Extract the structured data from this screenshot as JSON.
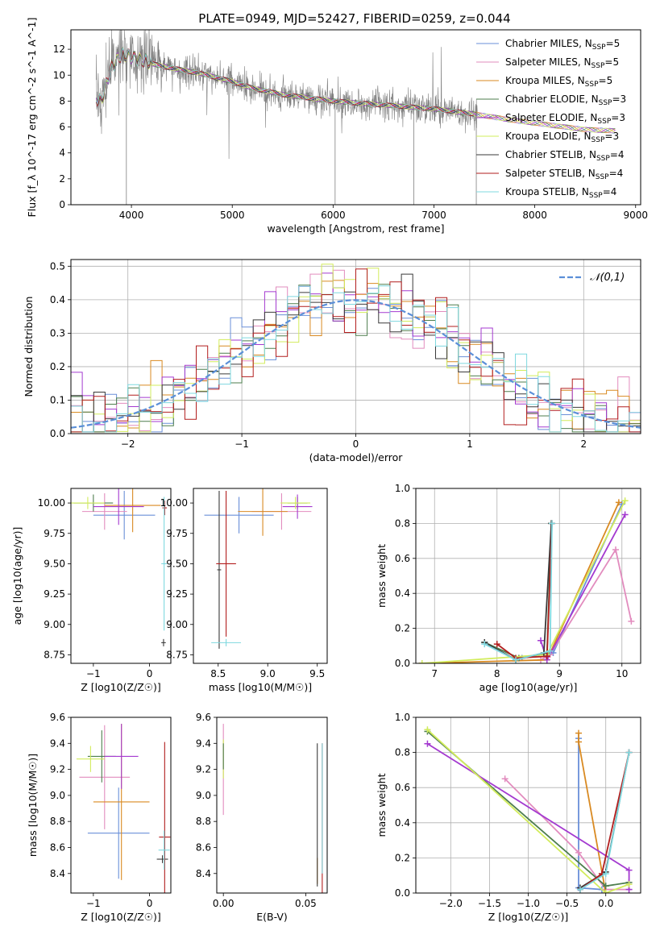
{
  "figure_title": "PLATE=0949, MJD=52427, FIBERID=0259, z=0.044",
  "colors": {
    "Chabrier MILES": "#6a8fd8",
    "Salpeter MILES": "#e28cbe",
    "Kroupa MILES": "#d98a22",
    "Chabrier ELODIE": "#4e7e4e",
    "Salpeter ELODIE": "#a43ad0",
    "Kroupa ELODIE": "#d2ec5c",
    "Chabrier STELIB": "#3a3a3a",
    "Salpeter STELIB": "#b21e1e",
    "Kroupa STELIB": "#7fd8df",
    "data": "#808080",
    "normal_curve": "#5b8fd8",
    "grid": "#b0b0b0"
  },
  "chart_data": [
    {
      "id": "spectrum",
      "type": "line",
      "title": "PLATE=0949, MJD=52427, FIBERID=0259, z=0.044",
      "xlabel": "wavelength [Angstrom, rest frame]",
      "ylabel": "Flux [f_λ 10^-17 erg cm^-2 s^-1 A^-1]",
      "xlim": [
        3400,
        9050
      ],
      "ylim": [
        0,
        13.5
      ],
      "xticks": [
        4000,
        5000,
        6000,
        7000,
        8000,
        9000
      ],
      "yticks": [
        0,
        2,
        4,
        6,
        8,
        10,
        12
      ],
      "grid": false,
      "legend_position": "top-right",
      "legend": [
        {
          "name": "Chabrier MILES",
          "ssp": "5"
        },
        {
          "name": "Salpeter MILES",
          "ssp": "5"
        },
        {
          "name": "Kroupa MILES",
          "ssp": "5"
        },
        {
          "name": "Chabrier ELODIE",
          "ssp": "3"
        },
        {
          "name": "Salpeter ELODIE",
          "ssp": "3"
        },
        {
          "name": "Kroupa ELODIE",
          "ssp": "3"
        },
        {
          "name": "Chabrier STELIB",
          "ssp": "4"
        },
        {
          "name": "Salpeter STELIB",
          "ssp": "4"
        },
        {
          "name": "Kroupa STELIB",
          "ssp": "4"
        }
      ],
      "continuum": {
        "x": [
          3650,
          3700,
          3750,
          3800,
          3900,
          4000,
          4100,
          4200,
          4300,
          4500,
          4700,
          5000,
          5200,
          5500,
          6000,
          6500,
          7000,
          7400,
          7800,
          8200,
          8500,
          8800
        ],
        "y": [
          8.2,
          8.0,
          9.3,
          10.6,
          11.6,
          11.4,
          11.2,
          10.9,
          10.7,
          10.4,
          10.1,
          9.5,
          9.0,
          8.5,
          8.0,
          7.7,
          7.4,
          7.0,
          6.5,
          6.1,
          5.8,
          5.7
        ]
      },
      "noise_amplitude": 0.6
    },
    {
      "id": "residuals",
      "type": "step",
      "xlabel": "(data-model)/error",
      "ylabel": "Normed distribution",
      "xlim": [
        -2.5,
        2.5
      ],
      "ylim": [
        0,
        0.52
      ],
      "xticks": [
        -2,
        -1,
        0,
        1,
        2
      ],
      "yticks": [
        0.0,
        0.1,
        0.2,
        0.3,
        0.4,
        0.5
      ],
      "grid": true,
      "legend_position": "top-right",
      "legend": [
        "𝒩(0,1)"
      ],
      "bin_width": 0.1,
      "bins": 50,
      "scatter": 0.05
    },
    {
      "id": "age_vs_Z",
      "type": "errorbar",
      "xlabel": "Z [log10(Z/Z☉)]",
      "ylabel": "age [log10(age/yr)]",
      "xlim": [
        -1.4,
        0.38
      ],
      "ylim": [
        8.68,
        10.12
      ],
      "xticks": [
        -1,
        0
      ],
      "yticks": [
        8.75,
        9.0,
        9.25,
        9.5,
        9.75,
        10.0
      ],
      "grid": false,
      "points": [
        {
          "series": "Chabrier MILES",
          "x": -0.45,
          "xerr": 0.55,
          "y": 9.9,
          "yerr": 0.2
        },
        {
          "series": "Salpeter MILES",
          "x": -0.8,
          "xerr": 0.4,
          "y": 9.93,
          "yerr": 0.15
        },
        {
          "series": "Kroupa MILES",
          "x": -0.3,
          "xerr": 0.5,
          "y": 9.98,
          "yerr": 0.22
        },
        {
          "series": "Chabrier ELODIE",
          "x": -1.0,
          "xerr": 0.35,
          "y": 10.0,
          "yerr": 0.07
        },
        {
          "series": "Salpeter ELODIE",
          "x": -0.55,
          "xerr": 0.45,
          "y": 9.97,
          "yerr": 0.15
        },
        {
          "series": "Kroupa ELODIE",
          "x": -1.1,
          "xerr": 0.3,
          "y": 10.0,
          "yerr": 0.05
        },
        {
          "series": "Chabrier STELIB",
          "x": 0.25,
          "xerr": 0.04,
          "y": 8.85,
          "yerr": 0.03
        },
        {
          "series": "Salpeter STELIB",
          "x": 0.27,
          "xerr": 0.04,
          "y": 9.96,
          "yerr": 0.06
        },
        {
          "series": "Kroupa STELIB",
          "x": 0.26,
          "xerr": 0.05,
          "y": 9.5,
          "yerr": 0.55
        }
      ]
    },
    {
      "id": "age_vs_mass",
      "type": "errorbar",
      "xlabel": "mass [log10(M/M☉)]",
      "ylabel": "",
      "xlim": [
        8.25,
        9.6
      ],
      "ylim": [
        8.68,
        10.12
      ],
      "xticks": [
        8.5,
        9.0,
        9.5
      ],
      "yticks": [
        8.75,
        9.0,
        9.25,
        9.5,
        9.75,
        10.0
      ],
      "grid": false,
      "points": [
        {
          "series": "Chabrier MILES",
          "x": 8.71,
          "xerr": 0.35,
          "y": 9.9,
          "yerr": 0.15
        },
        {
          "series": "Salpeter MILES",
          "x": 9.14,
          "xerr": 0.3,
          "y": 9.93,
          "yerr": 0.15
        },
        {
          "series": "Kroupa MILES",
          "x": 8.95,
          "xerr": 0.25,
          "y": 9.93,
          "yerr": 0.2
        },
        {
          "series": "Chabrier ELODIE",
          "x": 9.3,
          "xerr": 0.1,
          "y": 10.0,
          "yerr": 0.05
        },
        {
          "series": "Salpeter ELODIE",
          "x": 9.3,
          "xerr": 0.15,
          "y": 9.97,
          "yerr": 0.1
        },
        {
          "series": "Kroupa ELODIE",
          "x": 9.28,
          "xerr": 0.15,
          "y": 10.0,
          "yerr": 0.05
        },
        {
          "series": "Chabrier STELIB",
          "x": 8.51,
          "xerr": 0.02,
          "y": 9.45,
          "yerr": 0.65
        },
        {
          "series": "Salpeter STELIB",
          "x": 8.58,
          "xerr": 0.1,
          "y": 9.5,
          "yerr": 0.6
        },
        {
          "series": "Kroupa STELIB",
          "x": 8.58,
          "xerr": 0.15,
          "y": 8.85,
          "yerr": 0.03
        }
      ]
    },
    {
      "id": "weight_vs_age",
      "type": "line",
      "xlabel": "age [log10(age/yr)]",
      "ylabel": "mass weight",
      "xlim": [
        6.7,
        10.3
      ],
      "ylim": [
        0,
        1.0
      ],
      "xticks": [
        7,
        8,
        9,
        10
      ],
      "yticks": [
        0.0,
        0.2,
        0.4,
        0.6,
        0.8,
        1.0
      ],
      "grid": true,
      "series": [
        {
          "name": "Chabrier MILES",
          "x": [
            8.4,
            8.9,
            10.0
          ],
          "y": [
            0.03,
            0.06,
            0.91
          ]
        },
        {
          "name": "Salpeter MILES",
          "x": [
            8.7,
            8.85,
            9.9,
            10.15
          ],
          "y": [
            0.02,
            0.05,
            0.65,
            0.24
          ]
        },
        {
          "name": "Kroupa MILES",
          "x": [
            6.8,
            8.8,
            9.95
          ],
          "y": [
            0.0,
            0.02,
            0.92
          ]
        },
        {
          "name": "Chabrier ELODIE",
          "x": [
            7.8,
            8.35,
            8.8,
            8.87
          ],
          "y": [
            0.12,
            0.03,
            0.06,
            0.8
          ]
        },
        {
          "name": "Salpeter ELODIE",
          "x": [
            8.7,
            8.8,
            10.05
          ],
          "y": [
            0.13,
            0.02,
            0.85
          ]
        },
        {
          "name": "Kroupa ELODIE",
          "x": [
            6.8,
            8.8,
            10.05
          ],
          "y": [
            0.0,
            0.05,
            0.93
          ]
        },
        {
          "name": "Chabrier STELIB",
          "x": [
            7.8,
            8.3,
            8.75,
            8.87
          ],
          "y": [
            0.12,
            0.02,
            0.06,
            0.8
          ]
        },
        {
          "name": "Salpeter STELIB",
          "x": [
            8.0,
            8.3,
            8.8,
            8.88
          ],
          "y": [
            0.11,
            0.03,
            0.04,
            0.8
          ]
        },
        {
          "name": "Kroupa STELIB",
          "x": [
            7.8,
            8.3,
            8.85,
            8.88
          ],
          "y": [
            0.11,
            0.02,
            0.07,
            0.8
          ]
        }
      ]
    },
    {
      "id": "mass_vs_Z",
      "type": "errorbar",
      "xlabel": "Z [log10(Z/Z☉)]",
      "ylabel": "mass [log10(M/M☉)]",
      "xlim": [
        -1.4,
        0.38
      ],
      "ylim": [
        8.25,
        9.6
      ],
      "xticks": [
        -1,
        0
      ],
      "yticks": [
        8.4,
        8.6,
        8.8,
        9.0,
        9.2,
        9.4,
        9.6
      ],
      "grid": false,
      "points": [
        {
          "series": "Chabrier MILES",
          "x": -0.55,
          "xerr": 0.55,
          "y": 8.71,
          "yerr": 0.35
        },
        {
          "series": "Salpeter MILES",
          "x": -0.8,
          "xerr": 0.45,
          "y": 9.14,
          "yerr": 0.4
        },
        {
          "series": "Kroupa MILES",
          "x": -0.5,
          "xerr": 0.5,
          "y": 8.95,
          "yerr": 0.6
        },
        {
          "series": "Chabrier ELODIE",
          "x": -0.85,
          "xerr": 0.25,
          "y": 9.3,
          "yerr": 0.2
        },
        {
          "series": "Salpeter ELODIE",
          "x": -0.5,
          "xerr": 0.3,
          "y": 9.3,
          "yerr": 0.25
        },
        {
          "series": "Kroupa ELODIE",
          "x": -1.05,
          "xerr": 0.25,
          "y": 9.28,
          "yerr": 0.1
        },
        {
          "series": "Chabrier STELIB",
          "x": 0.23,
          "xerr": 0.1,
          "y": 8.51,
          "yerr": 0.03
        },
        {
          "series": "Salpeter STELIB",
          "x": 0.27,
          "xerr": 0.1,
          "y": 8.68,
          "yerr": 0.73
        },
        {
          "series": "Kroupa STELIB",
          "x": 0.26,
          "xerr": 0.1,
          "y": 8.58,
          "yerr": 0.15
        }
      ]
    },
    {
      "id": "mass_vs_ebv",
      "type": "errorbar",
      "xlabel": "E(B-V)",
      "ylabel": "",
      "xlim": [
        -0.004,
        0.063
      ],
      "ylim": [
        8.25,
        9.6
      ],
      "xticks": [
        0.0,
        0.05
      ],
      "yticks": [
        8.4,
        8.6,
        8.8,
        9.0,
        9.2,
        9.4,
        9.6
      ],
      "grid": false,
      "points": [
        {
          "series": "Salpeter MILES",
          "x": 0.0,
          "xerr": 0.0,
          "y": 9.2,
          "yerr": 0.35
        },
        {
          "series": "Kroupa ELODIE",
          "x": 0.0,
          "xerr": 0.0,
          "y": 9.28,
          "yerr": 0.15
        },
        {
          "series": "Chabrier ELODIE",
          "x": 0.0,
          "xerr": 0.0,
          "y": 9.3,
          "yerr": 0.1
        },
        {
          "series": "Kroupa MILES",
          "x": 0.057,
          "xerr": 0.0,
          "y": 8.42,
          "yerr": 0.1
        },
        {
          "series": "Chabrier STELIB",
          "x": 0.057,
          "xerr": 0.0,
          "y": 8.85,
          "yerr": 0.55
        },
        {
          "series": "Salpeter STELIB",
          "x": 0.06,
          "xerr": 0.0,
          "y": 8.7,
          "yerr": 0.7
        },
        {
          "series": "Kroupa STELIB",
          "x": 0.06,
          "xerr": 0.0,
          "y": 8.9,
          "yerr": 0.5
        }
      ]
    },
    {
      "id": "weight_vs_Z",
      "type": "line",
      "xlabel": "Z [log10(Z/Z☉)]",
      "ylabel": "mass weight",
      "xlim": [
        -2.45,
        0.45
      ],
      "ylim": [
        0,
        1.0
      ],
      "xticks": [
        -2.0,
        -1.5,
        -1.0,
        -0.5,
        0.0
      ],
      "yticks": [
        0.0,
        0.2,
        0.4,
        0.6,
        0.8,
        1.0
      ],
      "grid": true,
      "series": [
        {
          "name": "Chabrier MILES",
          "x": [
            -0.35,
            -0.35,
            -0.05
          ],
          "y": [
            0.88,
            0.03,
            0.02
          ]
        },
        {
          "name": "Salpeter MILES",
          "x": [
            -1.3,
            -0.35,
            0.0,
            0.3
          ],
          "y": [
            0.65,
            0.23,
            0.02,
            0.02
          ]
        },
        {
          "name": "Kroupa MILES",
          "x": [
            -0.35,
            -0.35,
            0.0
          ],
          "y": [
            0.91,
            0.86,
            0.0
          ]
        },
        {
          "name": "Chabrier ELODIE",
          "x": [
            -2.3,
            0.0,
            0.3
          ],
          "y": [
            0.92,
            0.04,
            0.06
          ]
        },
        {
          "name": "Salpeter ELODIE",
          "x": [
            -2.3,
            0.3,
            0.3
          ],
          "y": [
            0.85,
            0.13,
            0.02
          ]
        },
        {
          "name": "Kroupa ELODIE",
          "x": [
            -2.3,
            0.0,
            0.3
          ],
          "y": [
            0.93,
            0.0,
            0.05
          ]
        },
        {
          "name": "Chabrier STELIB",
          "x": [
            -0.33,
            0.0,
            0.3
          ],
          "y": [
            0.03,
            0.12,
            0.8
          ]
        },
        {
          "name": "Salpeter STELIB",
          "x": [
            -0.33,
            -0.05,
            0.3
          ],
          "y": [
            0.02,
            0.11,
            0.8
          ]
        },
        {
          "name": "Kroupa STELIB",
          "x": [
            -0.33,
            0.0,
            0.3
          ],
          "y": [
            0.02,
            0.11,
            0.8
          ]
        }
      ]
    }
  ]
}
